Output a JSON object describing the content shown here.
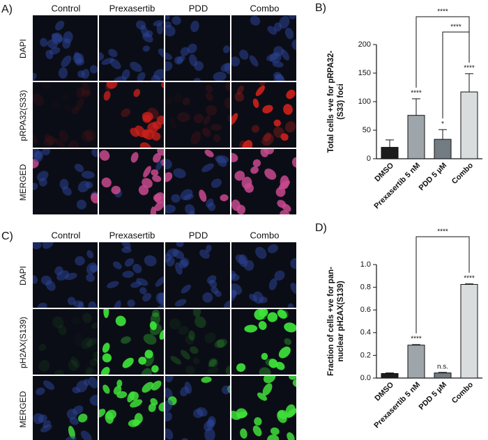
{
  "panels": [
    {
      "label": "A)",
      "columns": [
        "Control",
        "Prexasertib",
        "PDD",
        "Combo"
      ],
      "rows": [
        "DAPI",
        "pRPA32(S33)",
        "MERGED"
      ]
    },
    {
      "label": "C)",
      "columns": [
        "Control",
        "Prexasertib",
        "PDD",
        "Combo"
      ],
      "rows": [
        "DAPI",
        "pH2AX(S139)",
        "MERGED"
      ]
    }
  ],
  "chart_data": [
    {
      "type": "bar",
      "panel_label": "B)",
      "ylabel": "Total cells +ve for pRPA32-(S33) foci",
      "categories": [
        "DMSO",
        "Prexasertib 5 nM",
        "PDD 5 µM",
        "Combo"
      ],
      "values": [
        20,
        76,
        34,
        117
      ],
      "errors": [
        13,
        29,
        17,
        32
      ],
      "colors": [
        "#1c1c1c",
        "#9ea6ab",
        "#727c82",
        "#d9dddd"
      ],
      "value_annotations": [
        null,
        "****",
        "*",
        "****"
      ],
      "brackets": [
        {
          "from": 1,
          "to": 3,
          "label": "****"
        },
        {
          "from": 2,
          "to": 3,
          "label": "****"
        }
      ],
      "ylim": [
        0,
        200
      ],
      "yticks": [
        0,
        50,
        100,
        150,
        200
      ]
    },
    {
      "type": "bar",
      "panel_label": "D)",
      "ylabel": "Fraction of cells +ve for pan-nuclear pH2AX(S139)",
      "categories": [
        "DMSO",
        "Prexasertib 5 nM",
        "PDD 5 µM",
        "Combo"
      ],
      "values": [
        0.04,
        0.29,
        0.045,
        0.825
      ],
      "errors": [
        0.005,
        0.005,
        0.005,
        0.005
      ],
      "colors": [
        "#1c1c1c",
        "#9ea6ab",
        "#727c82",
        "#d9dddd"
      ],
      "value_annotations": [
        null,
        "****",
        "n.s.",
        "****"
      ],
      "brackets": [
        {
          "from": 1,
          "to": 3,
          "label": "****"
        }
      ],
      "ylim": [
        0,
        1.0
      ],
      "yticks": [
        {
          "value": 0,
          "label": "0.0"
        },
        0.2,
        0.4,
        0.6,
        0.8,
        {
          "value": 1.0,
          "label": "1.0"
        }
      ]
    }
  ]
}
